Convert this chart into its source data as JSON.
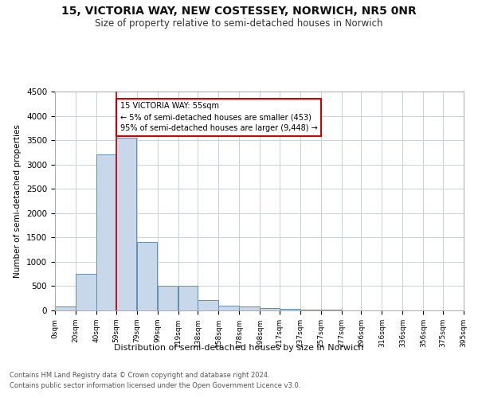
{
  "title_line1": "15, VICTORIA WAY, NEW COSTESSEY, NORWICH, NR5 0NR",
  "title_line2": "Size of property relative to semi-detached houses in Norwich",
  "xlabel": "Distribution of semi-detached houses by size in Norwich",
  "ylabel": "Number of semi-detached properties",
  "footer_line1": "Contains HM Land Registry data © Crown copyright and database right 2024.",
  "footer_line2": "Contains public sector information licensed under the Open Government Licence v3.0.",
  "annotation_title": "15 VICTORIA WAY: 55sqm",
  "annotation_line1": "← 5% of semi-detached houses are smaller (453)",
  "annotation_line2": "95% of semi-detached houses are larger (9,448) →",
  "property_size": 55,
  "bar_left_edges": [
    0,
    20,
    40,
    59,
    79,
    99,
    119,
    138,
    158,
    178,
    198,
    217,
    237,
    257,
    277,
    296,
    316,
    336,
    356,
    375
  ],
  "bar_widths": [
    20,
    20,
    19,
    20,
    20,
    20,
    19,
    20,
    20,
    20,
    19,
    20,
    20,
    20,
    19,
    20,
    20,
    20,
    19,
    20
  ],
  "bar_heights": [
    80,
    750,
    3200,
    3550,
    1400,
    500,
    500,
    210,
    100,
    80,
    55,
    30,
    20,
    10,
    5,
    3,
    3,
    3,
    3,
    3
  ],
  "tick_labels": [
    "0sqm",
    "20sqm",
    "40sqm",
    "59sqm",
    "79sqm",
    "99sqm",
    "119sqm",
    "138sqm",
    "158sqm",
    "178sqm",
    "198sqm",
    "217sqm",
    "237sqm",
    "257sqm",
    "277sqm",
    "296sqm",
    "316sqm",
    "336sqm",
    "356sqm",
    "375sqm",
    "395sqm"
  ],
  "bar_color": "#c8d8ea",
  "bar_edge_color": "#6090b0",
  "vline_color": "#cc0000",
  "vline_x": 59,
  "annotation_box_color": "#ffffff",
  "annotation_box_edge": "#cc0000",
  "grid_color": "#c8d0d8",
  "ylim": [
    0,
    4500
  ],
  "yticks": [
    0,
    500,
    1000,
    1500,
    2000,
    2500,
    3000,
    3500,
    4000,
    4500
  ],
  "xlim_max": 395,
  "background_color": "#ffffff"
}
